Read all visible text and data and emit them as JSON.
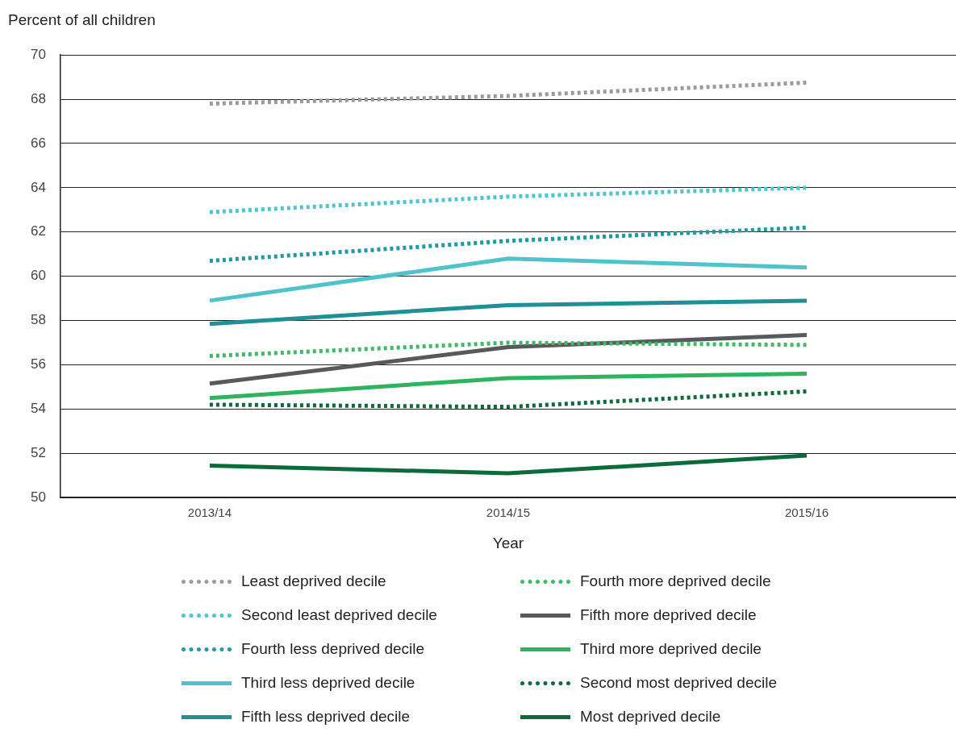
{
  "chart_data": {
    "type": "line",
    "ylabel": "Percent of all children",
    "xlabel": "Year",
    "categories": [
      "2013/14",
      "2014/15",
      "2015/16"
    ],
    "ylim": [
      50,
      70
    ],
    "yticks": [
      50,
      52,
      54,
      56,
      58,
      60,
      62,
      64,
      66,
      68,
      70
    ],
    "grid": "y",
    "legend": "bottom",
    "marker": "none",
    "series": [
      {
        "name": "Least deprived decile",
        "color": "#9b9b9b",
        "line_style": "dotted",
        "values": [
          67.8,
          68.15,
          68.75
        ]
      },
      {
        "name": "Second least deprived decile",
        "color": "#4fc6cf",
        "line_style": "dotted",
        "values": [
          62.9,
          63.6,
          64.0
        ]
      },
      {
        "name": "Fourth less deprived decile",
        "color": "#1e9aa0",
        "line_style": "dotted",
        "values": [
          60.7,
          61.6,
          62.2
        ]
      },
      {
        "name": "Third less deprived decile",
        "color": "#4fc3cc",
        "line_style": "solid",
        "values": [
          58.9,
          60.8,
          60.4
        ]
      },
      {
        "name": "Fifth less deprived decile",
        "color": "#1e9096",
        "line_style": "solid",
        "values": [
          57.85,
          58.7,
          58.9
        ]
      },
      {
        "name": "Fourth more deprived decile",
        "color": "#3dbb6b",
        "line_style": "dotted",
        "values": [
          56.4,
          57.0,
          56.9
        ]
      },
      {
        "name": "Fifth more deprived decile",
        "color": "#58595b",
        "line_style": "solid",
        "values": [
          55.15,
          56.8,
          57.35
        ]
      },
      {
        "name": "Third more deprived decile",
        "color": "#2eb35f",
        "line_style": "solid",
        "values": [
          54.5,
          55.4,
          55.6
        ]
      },
      {
        "name": "Second most deprived decile",
        "color": "#0b6b3a",
        "line_style": "dotted",
        "values": [
          54.2,
          54.1,
          54.8
        ]
      },
      {
        "name": "Most deprived decile",
        "color": "#0b6b3a",
        "line_style": "solid",
        "values": [
          51.45,
          51.1,
          51.9
        ]
      }
    ]
  }
}
